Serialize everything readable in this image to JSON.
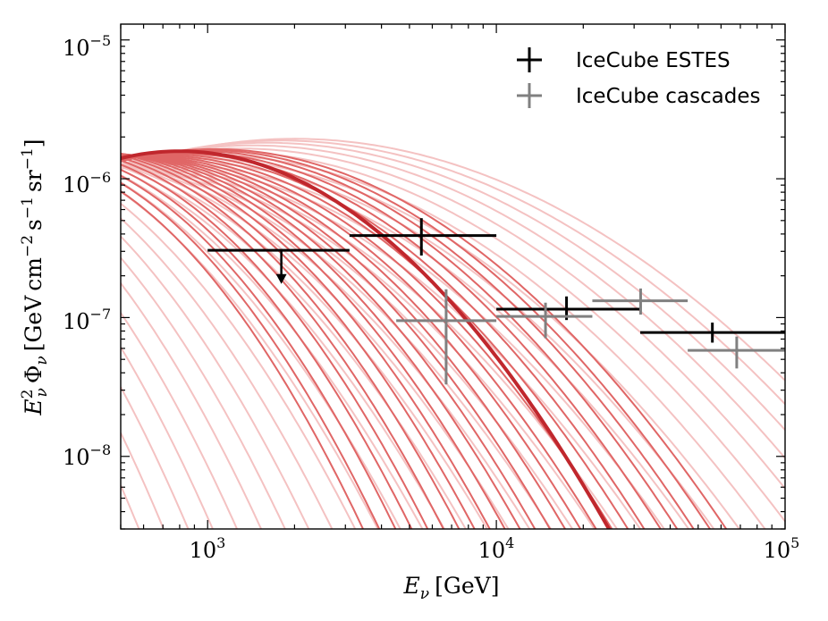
{
  "chart_data": {
    "type": "line",
    "x_scale": "log",
    "y_scale": "log",
    "xlim": [
      500,
      100000
    ],
    "ylim": [
      3e-09,
      1.3e-05
    ],
    "xlabel": "E_ν [GeV]",
    "ylabel": "E_ν² Φ_ν [GeV cm⁻² s⁻¹ sr⁻¹]",
    "xlabel_parts": {
      "var": "E",
      "sub": "ν",
      "unit": "[GeV]"
    },
    "ylabel_parts": {
      "var": "E",
      "sub": "ν",
      "sup": "2",
      "phi": "Φ",
      "phi_sub": "ν",
      "open": "[GeV",
      "cm": "cm",
      "cm_exp": "−2",
      "s": "s",
      "s_exp": "−1",
      "sr": "sr",
      "sr_exp": "−1",
      "close": "]"
    },
    "x_ticks": [
      {
        "value": 1000,
        "base": "10",
        "exp": "3"
      },
      {
        "value": 10000,
        "base": "10",
        "exp": "4"
      },
      {
        "value": 100000,
        "base": "10",
        "exp": "5"
      }
    ],
    "y_ticks": [
      {
        "value": 1e-08,
        "base": "10",
        "exp": "−8"
      },
      {
        "value": 1e-07,
        "base": "10",
        "exp": "−7"
      },
      {
        "value": 1e-06,
        "base": "10",
        "exp": "−6"
      },
      {
        "value": 1e-05,
        "base": "10",
        "exp": "−5"
      }
    ],
    "legend": {
      "placement": "top-right",
      "entries": [
        {
          "label": "IceCube ESTES",
          "color": "#000000"
        },
        {
          "label": "IceCube cascades",
          "color": "#808080"
        }
      ]
    },
    "model_band": {
      "description": "Family of log-parabola model spectra E^2 Phi = A * exp(-(log10(E/E_peak))^2 / (2 sigma^2))",
      "best_fit": {
        "peak_energy_GeV": 800,
        "peak_flux": 1.58e-06,
        "sigma_decades": 0.42,
        "color": "#c0272d"
      },
      "dark_band": {
        "color": "#e06666",
        "peak_energy_GeV": [
          200,
          1050
        ],
        "peak_flux": [
          1.45e-06,
          1.65e-06
        ],
        "sigma_decades": [
          0.35,
          0.5
        ]
      },
      "light_band": {
        "color": "#f4c2c2",
        "peak_energy_GeV": [
          50,
          2000
        ],
        "peak_flux": [
          1.2e-06,
          2e-06
        ],
        "sigma_decades": [
          0.3,
          0.6
        ]
      }
    },
    "series": [
      {
        "name": "IceCube ESTES",
        "color": "#000000",
        "points": [
          {
            "x": 1800,
            "x_lo": 1000,
            "x_hi": 3100,
            "y": 3.05e-07,
            "upper_limit": true,
            "arrow_to": 1.8e-07
          },
          {
            "x": 5500,
            "x_lo": 3100,
            "x_hi": 10000,
            "y": 3.9e-07,
            "y_lo": 2.8e-07,
            "y_hi": 5.2e-07
          },
          {
            "x": 17500,
            "x_lo": 10000,
            "x_hi": 31500,
            "y": 1.15e-07,
            "y_lo": 9.6e-08,
            "y_hi": 1.42e-07
          },
          {
            "x": 56000,
            "x_lo": 31500,
            "x_hi": 100000,
            "y": 7.8e-08,
            "y_lo": 6.6e-08,
            "y_hi": 9.2e-08
          }
        ]
      },
      {
        "name": "IceCube cascades",
        "color": "#808080",
        "points": [
          {
            "x": 6700,
            "x_lo": 4500,
            "x_hi": 10000,
            "y": 9.5e-08,
            "y_lo": 3.3e-08,
            "y_hi": 1.6e-07
          },
          {
            "x": 14800,
            "x_lo": 10000,
            "x_hi": 21500,
            "y": 1.02e-07,
            "y_lo": 7.1e-08,
            "y_hi": 1.28e-07
          },
          {
            "x": 31600,
            "x_lo": 21500,
            "x_hi": 46000,
            "y": 1.32e-07,
            "y_lo": 1.05e-07,
            "y_hi": 1.62e-07
          },
          {
            "x": 68000,
            "x_lo": 46000,
            "x_hi": 100000,
            "y": 5.8e-08,
            "y_lo": 4.3e-08,
            "y_hi": 7.3e-08
          }
        ]
      }
    ]
  }
}
